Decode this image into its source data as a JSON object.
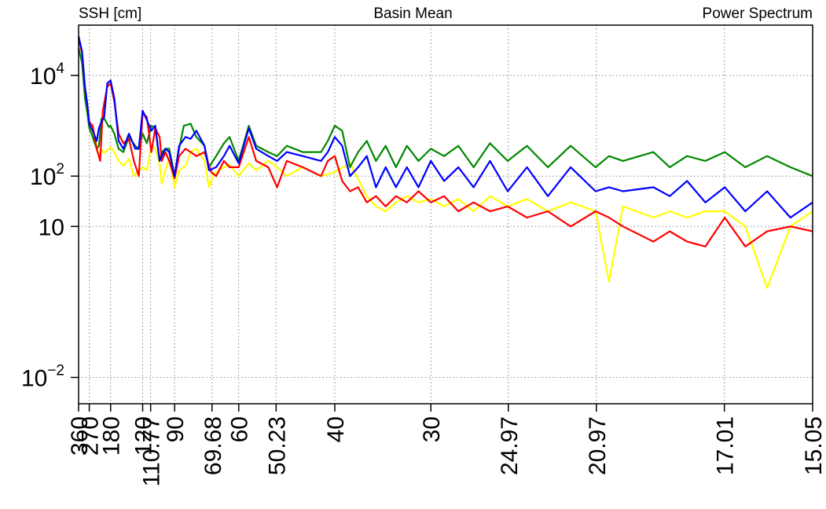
{
  "header": {
    "left": "SSH [cm]",
    "center": "Basin Mean",
    "right": "Power Spectrum"
  },
  "chart_data": {
    "type": "line",
    "title": "Basin Mean",
    "ylabel": "SSH [cm]",
    "annotation_right": "Power Spectrum",
    "yscale": "log",
    "xscale": "reciprocal",
    "xlim": [
      360,
      15.05
    ],
    "ylim": [
      0.003,
      100000
    ],
    "grid": true,
    "y_ticks": [
      {
        "value": 0.01,
        "base": "10",
        "exp": "−2"
      },
      {
        "value": 10,
        "base": "10",
        "exp": ""
      },
      {
        "value": 100,
        "base": "10",
        "exp": "2"
      },
      {
        "value": 10000,
        "base": "10",
        "exp": "4"
      }
    ],
    "x_ticks": [
      {
        "value": 360,
        "label": "360"
      },
      {
        "value": 270,
        "label": "270"
      },
      {
        "value": 180,
        "label": "180"
      },
      {
        "value": 120,
        "label": "120"
      },
      {
        "value": 110.77,
        "label": "110.77"
      },
      {
        "value": 90,
        "label": "90"
      },
      {
        "value": 69.68,
        "label": "69.68"
      },
      {
        "value": 60,
        "label": "60"
      },
      {
        "value": 50.23,
        "label": "50.23"
      },
      {
        "value": 40,
        "label": "40"
      },
      {
        "value": 30,
        "label": "30"
      },
      {
        "value": 24.97,
        "label": "24.97"
      },
      {
        "value": 20.97,
        "label": "20.97"
      },
      {
        "value": 17.01,
        "label": "17.01"
      },
      {
        "value": 15.05,
        "label": "15.05"
      }
    ],
    "series": [
      {
        "color": "#ffff00",
        "points": [
          [
            360,
            50000
          ],
          [
            325,
            27000
          ],
          [
            300,
            5500
          ],
          [
            285,
            3000
          ],
          [
            270,
            1000
          ],
          [
            250,
            700
          ],
          [
            230,
            400
          ],
          [
            220,
            250
          ],
          [
            210,
            330
          ],
          [
            200,
            290
          ],
          [
            180,
            370
          ],
          [
            170,
            300
          ],
          [
            160,
            200
          ],
          [
            150,
            160
          ],
          [
            140,
            220
          ],
          [
            132,
            100
          ],
          [
            125,
            130
          ],
          [
            120,
            150
          ],
          [
            115,
            130
          ],
          [
            110,
            400
          ],
          [
            106,
            350
          ],
          [
            102,
            170
          ],
          [
            100,
            70
          ],
          [
            97,
            130
          ],
          [
            94,
            230
          ],
          [
            90,
            60
          ],
          [
            87,
            130
          ],
          [
            83,
            160
          ],
          [
            80,
            300
          ],
          [
            77,
            350
          ],
          [
            73,
            200
          ],
          [
            71,
            60
          ],
          [
            69,
            110
          ],
          [
            66,
            140
          ],
          [
            63,
            170
          ],
          [
            60,
            100
          ],
          [
            57,
            180
          ],
          [
            55,
            130
          ],
          [
            52,
            200
          ],
          [
            50,
            150
          ],
          [
            48,
            100
          ],
          [
            45,
            150
          ],
          [
            42,
            100
          ],
          [
            40,
            120
          ],
          [
            38,
            180
          ],
          [
            36,
            40
          ],
          [
            35,
            25
          ],
          [
            34,
            20
          ],
          [
            33,
            30
          ],
          [
            32,
            40
          ],
          [
            31,
            30
          ],
          [
            30,
            35
          ],
          [
            29,
            25
          ],
          [
            28,
            35
          ],
          [
            27,
            20
          ],
          [
            26,
            40
          ],
          [
            25,
            25
          ],
          [
            24,
            35
          ],
          [
            23,
            20
          ],
          [
            22,
            30
          ],
          [
            21,
            20
          ],
          [
            20.5,
            0.8
          ],
          [
            20,
            25
          ],
          [
            19,
            15
          ],
          [
            18.5,
            20
          ],
          [
            18,
            15
          ],
          [
            17.5,
            20
          ],
          [
            17,
            20
          ],
          [
            16.5,
            10
          ],
          [
            16,
            0.6
          ],
          [
            15.5,
            10
          ],
          [
            15.05,
            20
          ]
        ]
      },
      {
        "color": "#008800",
        "points": [
          [
            360,
            35000
          ],
          [
            325,
            18000
          ],
          [
            300,
            3500
          ],
          [
            285,
            2000
          ],
          [
            270,
            900
          ],
          [
            250,
            600
          ],
          [
            230,
            350
          ],
          [
            220,
            400
          ],
          [
            210,
            1400
          ],
          [
            200,
            1400
          ],
          [
            185,
            950
          ],
          [
            180,
            1000
          ],
          [
            170,
            700
          ],
          [
            160,
            350
          ],
          [
            150,
            300
          ],
          [
            140,
            600
          ],
          [
            130,
            400
          ],
          [
            125,
            350
          ],
          [
            120,
            700
          ],
          [
            115,
            450
          ],
          [
            110,
            1000
          ],
          [
            106,
            900
          ],
          [
            102,
            200
          ],
          [
            100,
            300
          ],
          [
            97,
            350
          ],
          [
            94,
            350
          ],
          [
            90,
            100
          ],
          [
            87,
            350
          ],
          [
            84,
            1000
          ],
          [
            80,
            1100
          ],
          [
            77,
            600
          ],
          [
            73,
            400
          ],
          [
            71,
            150
          ],
          [
            68,
            250
          ],
          [
            65,
            450
          ],
          [
            63,
            600
          ],
          [
            60,
            200
          ],
          [
            57,
            1000
          ],
          [
            55,
            400
          ],
          [
            52,
            300
          ],
          [
            50,
            250
          ],
          [
            48,
            400
          ],
          [
            45,
            300
          ],
          [
            42,
            300
          ],
          [
            41,
            500
          ],
          [
            40,
            1000
          ],
          [
            39,
            800
          ],
          [
            38,
            150
          ],
          [
            37,
            300
          ],
          [
            36,
            500
          ],
          [
            35,
            200
          ],
          [
            34,
            400
          ],
          [
            33,
            150
          ],
          [
            32,
            400
          ],
          [
            31,
            200
          ],
          [
            30,
            350
          ],
          [
            29,
            250
          ],
          [
            28,
            400
          ],
          [
            27,
            150
          ],
          [
            26,
            450
          ],
          [
            25,
            200
          ],
          [
            24,
            400
          ],
          [
            23,
            150
          ],
          [
            22,
            400
          ],
          [
            21,
            150
          ],
          [
            20.5,
            250
          ],
          [
            20,
            200
          ],
          [
            19,
            300
          ],
          [
            18.5,
            150
          ],
          [
            18,
            250
          ],
          [
            17.5,
            200
          ],
          [
            17,
            300
          ],
          [
            16.5,
            150
          ],
          [
            16,
            250
          ],
          [
            15.5,
            150
          ],
          [
            15.05,
            100
          ]
        ]
      },
      {
        "color": "#ff0000",
        "points": [
          [
            360,
            55000
          ],
          [
            325,
            28000
          ],
          [
            300,
            5800
          ],
          [
            285,
            2900
          ],
          [
            270,
            1200
          ],
          [
            250,
            1000
          ],
          [
            230,
            350
          ],
          [
            215,
            200
          ],
          [
            205,
            2000
          ],
          [
            190,
            6000
          ],
          [
            180,
            7000
          ],
          [
            170,
            3000
          ],
          [
            160,
            700
          ],
          [
            150,
            450
          ],
          [
            140,
            550
          ],
          [
            132,
            200
          ],
          [
            125,
            100
          ],
          [
            120,
            1800
          ],
          [
            115,
            1500
          ],
          [
            110,
            300
          ],
          [
            106,
            900
          ],
          [
            102,
            600
          ],
          [
            100,
            200
          ],
          [
            97,
            300
          ],
          [
            94,
            200
          ],
          [
            90,
            90
          ],
          [
            87,
            250
          ],
          [
            83,
            350
          ],
          [
            80,
            300
          ],
          [
            77,
            250
          ],
          [
            73,
            300
          ],
          [
            70,
            120
          ],
          [
            68,
            100
          ],
          [
            65,
            200
          ],
          [
            63,
            150
          ],
          [
            60,
            150
          ],
          [
            57,
            600
          ],
          [
            55,
            200
          ],
          [
            52,
            150
          ],
          [
            50,
            60
          ],
          [
            48,
            200
          ],
          [
            45,
            150
          ],
          [
            42,
            100
          ],
          [
            41,
            200
          ],
          [
            40,
            250
          ],
          [
            39,
            80
          ],
          [
            38,
            50
          ],
          [
            37,
            60
          ],
          [
            36,
            30
          ],
          [
            35,
            40
          ],
          [
            34,
            25
          ],
          [
            33,
            40
          ],
          [
            32,
            30
          ],
          [
            31,
            50
          ],
          [
            30,
            30
          ],
          [
            29,
            40
          ],
          [
            28,
            20
          ],
          [
            27,
            30
          ],
          [
            26,
            20
          ],
          [
            25,
            25
          ],
          [
            24,
            15
          ],
          [
            23,
            20
          ],
          [
            22,
            10
          ],
          [
            21,
            20
          ],
          [
            20.5,
            15
          ],
          [
            20,
            10
          ],
          [
            19,
            5
          ],
          [
            18.5,
            8
          ],
          [
            18,
            5
          ],
          [
            17.5,
            4
          ],
          [
            17,
            15
          ],
          [
            16.5,
            4
          ],
          [
            16,
            8
          ],
          [
            15.5,
            10
          ],
          [
            15.05,
            8
          ]
        ]
      },
      {
        "color": "#0000ff",
        "points": [
          [
            360,
            60000
          ],
          [
            325,
            30000
          ],
          [
            300,
            6000
          ],
          [
            285,
            3000
          ],
          [
            270,
            1100
          ],
          [
            250,
            800
          ],
          [
            230,
            500
          ],
          [
            220,
            900
          ],
          [
            210,
            1200
          ],
          [
            200,
            1500
          ],
          [
            190,
            7000
          ],
          [
            180,
            8000
          ],
          [
            170,
            3500
          ],
          [
            160,
            500
          ],
          [
            150,
            350
          ],
          [
            140,
            700
          ],
          [
            130,
            350
          ],
          [
            125,
            350
          ],
          [
            120,
            2000
          ],
          [
            115,
            1300
          ],
          [
            110,
            800
          ],
          [
            106,
            1000
          ],
          [
            102,
            200
          ],
          [
            100,
            250
          ],
          [
            97,
            350
          ],
          [
            94,
            300
          ],
          [
            90,
            100
          ],
          [
            87,
            400
          ],
          [
            83,
            600
          ],
          [
            80,
            550
          ],
          [
            77,
            800
          ],
          [
            73,
            400
          ],
          [
            71,
            130
          ],
          [
            68,
            150
          ],
          [
            65,
            250
          ],
          [
            63,
            400
          ],
          [
            60,
            180
          ],
          [
            57,
            900
          ],
          [
            55,
            350
          ],
          [
            52,
            250
          ],
          [
            50,
            200
          ],
          [
            48,
            300
          ],
          [
            45,
            250
          ],
          [
            42,
            200
          ],
          [
            41,
            300
          ],
          [
            40,
            600
          ],
          [
            39,
            400
          ],
          [
            38,
            100
          ],
          [
            37,
            150
          ],
          [
            36,
            250
          ],
          [
            35,
            60
          ],
          [
            34,
            150
          ],
          [
            33,
            60
          ],
          [
            32,
            150
          ],
          [
            31,
            60
          ],
          [
            30,
            200
          ],
          [
            29,
            80
          ],
          [
            28,
            150
          ],
          [
            27,
            60
          ],
          [
            26,
            200
          ],
          [
            25,
            50
          ],
          [
            24,
            150
          ],
          [
            23,
            40
          ],
          [
            22,
            150
          ],
          [
            21,
            50
          ],
          [
            20.5,
            60
          ],
          [
            20,
            50
          ],
          [
            19,
            60
          ],
          [
            18.5,
            40
          ],
          [
            18,
            80
          ],
          [
            17.5,
            30
          ],
          [
            17,
            60
          ],
          [
            16.5,
            20
          ],
          [
            16,
            50
          ],
          [
            15.5,
            15
          ],
          [
            15.05,
            30
          ]
        ]
      }
    ]
  }
}
